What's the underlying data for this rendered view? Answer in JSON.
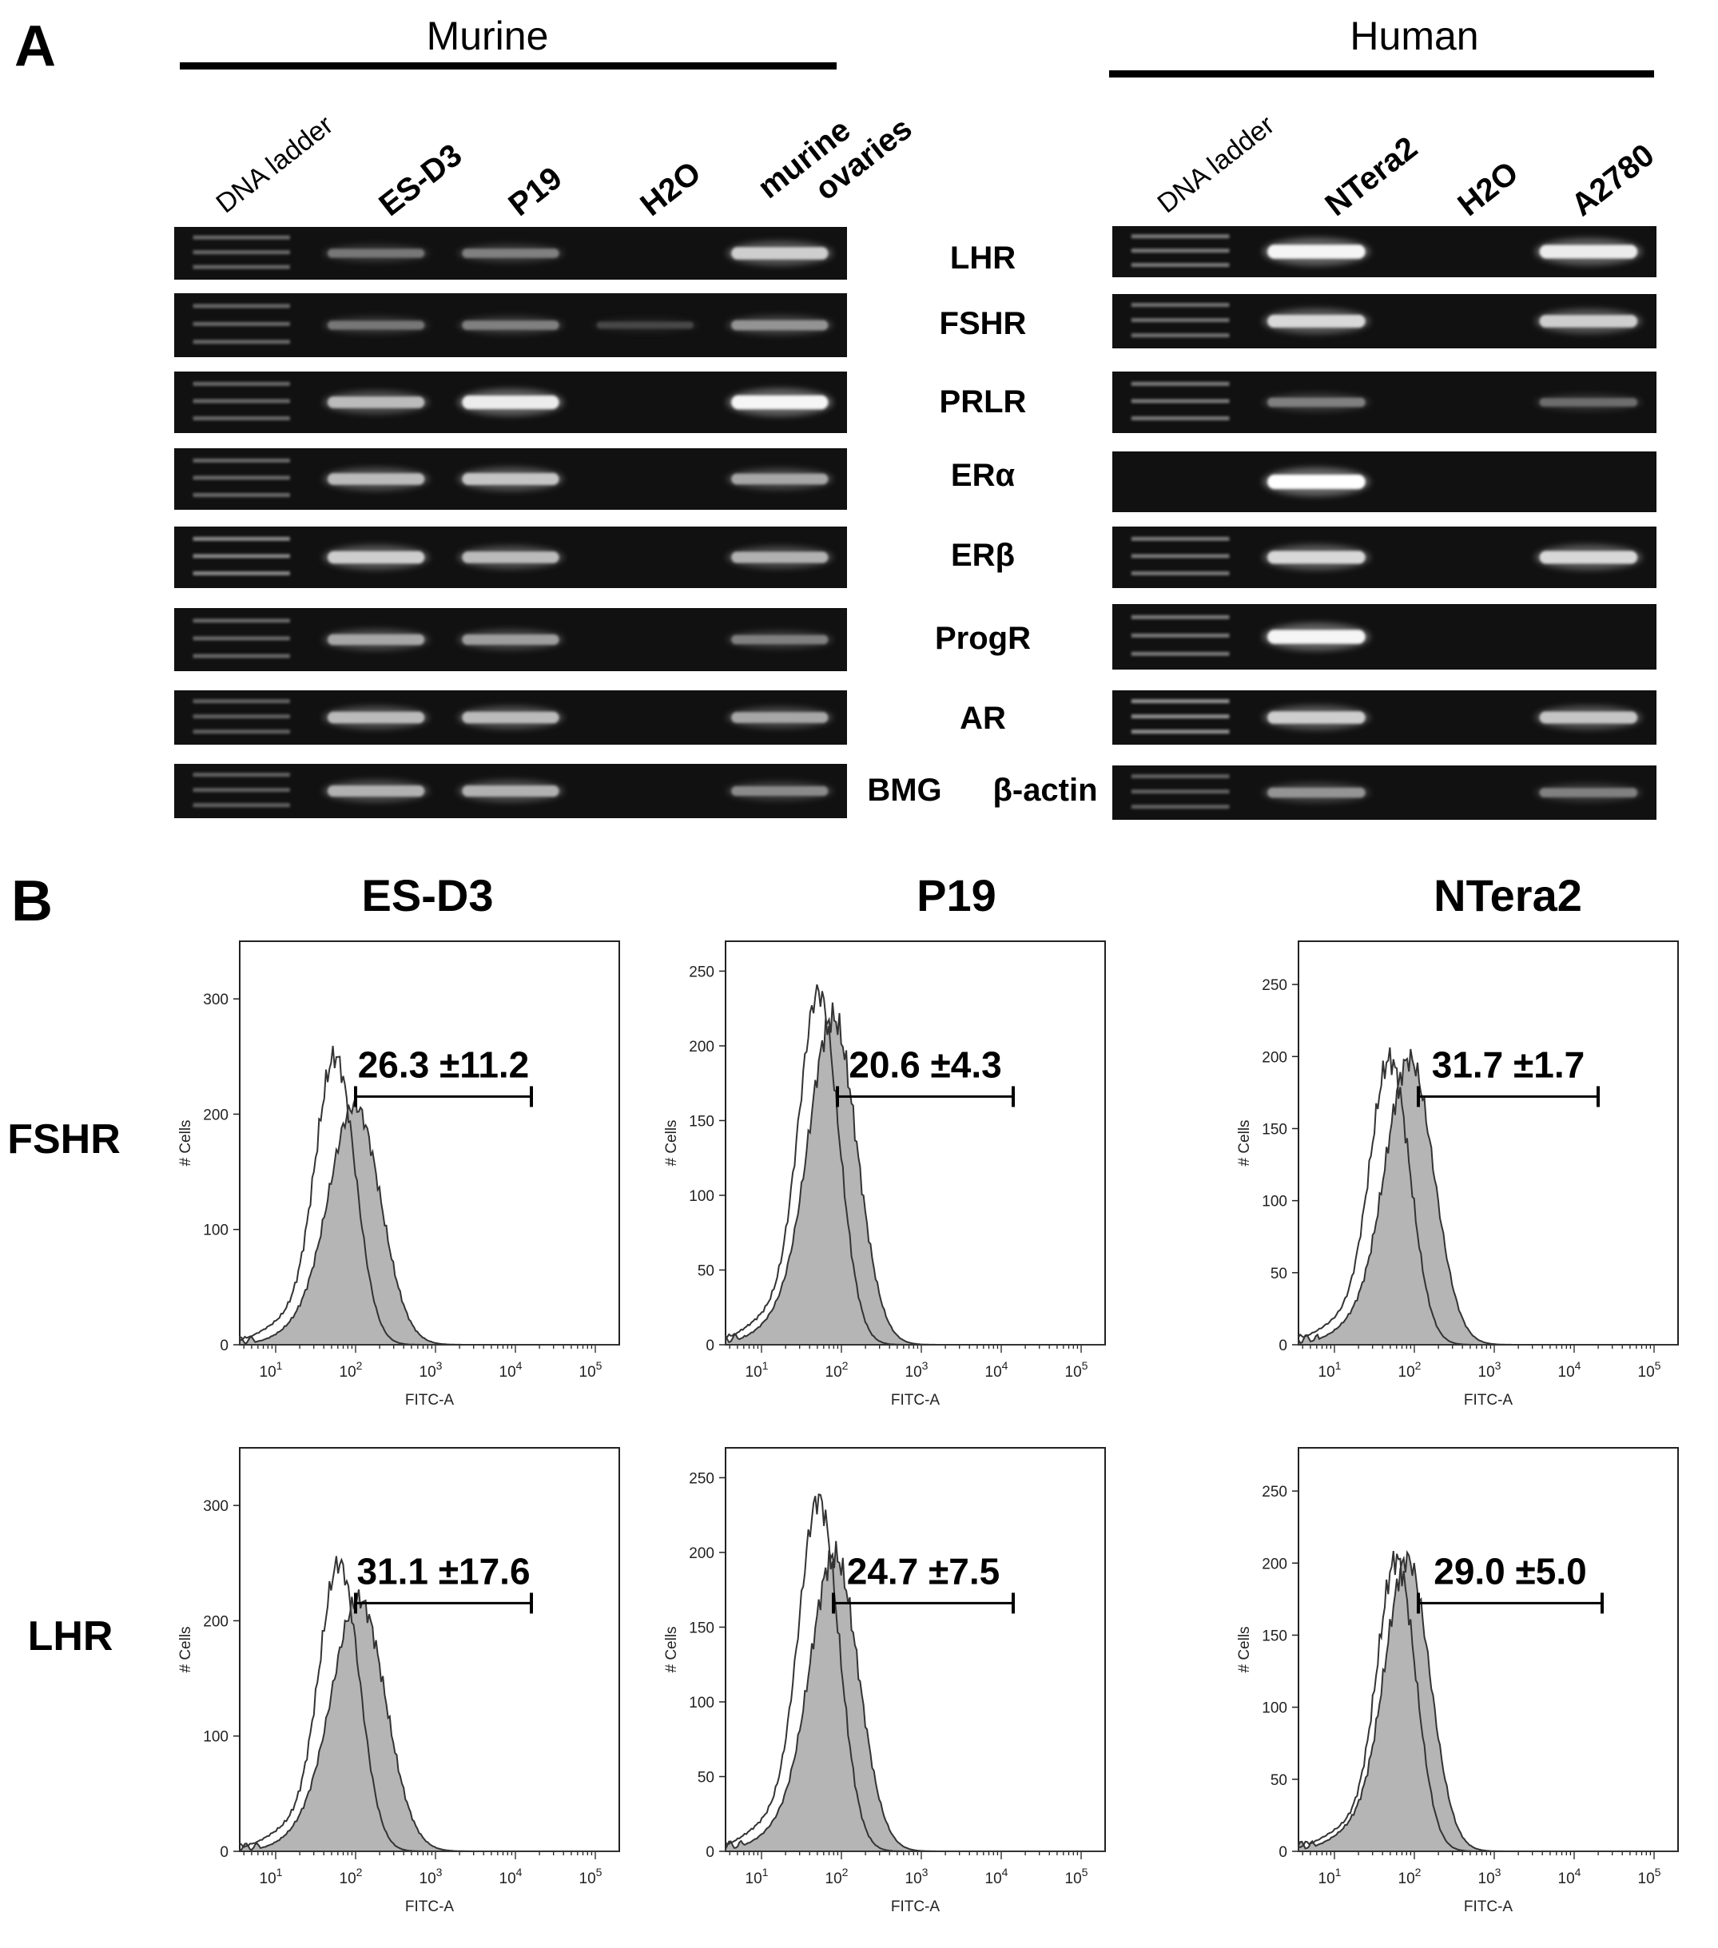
{
  "panel_a": {
    "letter": "A",
    "groups": [
      {
        "title": "Murine",
        "lanes": [
          {
            "label": "DNA ladder",
            "style": "thin"
          },
          {
            "label": "ES-D3",
            "style": "bold"
          },
          {
            "label": "P19",
            "style": "bold"
          },
          {
            "label": "H2O",
            "style": "bold"
          },
          {
            "label": "murine\novaries",
            "style": "bold"
          }
        ],
        "gels": [
          {
            "intensities": [
              0.35,
              0.3,
              0.35,
              0.0,
              0.75
            ]
          },
          {
            "intensities": [
              0.35,
              0.3,
              0.35,
              0.05,
              0.45
            ]
          },
          {
            "intensities": [
              0.35,
              0.65,
              0.9,
              0.0,
              0.95
            ]
          },
          {
            "intensities": [
              0.35,
              0.65,
              0.7,
              0.0,
              0.55
            ]
          },
          {
            "intensities": [
              0.55,
              0.75,
              0.65,
              0.0,
              0.6
            ]
          },
          {
            "intensities": [
              0.35,
              0.55,
              0.5,
              0.0,
              0.35
            ]
          },
          {
            "intensities": [
              0.3,
              0.65,
              0.65,
              0.0,
              0.55
            ]
          },
          {
            "intensities": [
              0.3,
              0.6,
              0.6,
              0.0,
              0.4
            ]
          }
        ]
      },
      {
        "title": "Human",
        "lanes": [
          {
            "label": "DNA ladder",
            "style": "thin"
          },
          {
            "label": "NTera2",
            "style": "bold"
          },
          {
            "label": "H2O",
            "style": "bold"
          },
          {
            "label": "A2780",
            "style": "bold"
          }
        ],
        "gels": [
          {
            "intensities": [
              0.45,
              0.95,
              0.0,
              0.9
            ]
          },
          {
            "intensities": [
              0.4,
              0.8,
              0.0,
              0.75
            ]
          },
          {
            "intensities": [
              0.45,
              0.35,
              0.0,
              0.25
            ]
          },
          {
            "intensities": [
              0.0,
              1.0,
              0.0,
              0.0
            ]
          },
          {
            "intensities": [
              0.45,
              0.8,
              0.0,
              0.8
            ]
          },
          {
            "intensities": [
              0.45,
              0.95,
              0.0,
              0.0
            ]
          },
          {
            "intensities": [
              0.6,
              0.75,
              0.0,
              0.7
            ]
          },
          {
            "intensities": [
              0.3,
              0.45,
              0.0,
              0.35
            ]
          }
        ]
      }
    ],
    "genes": [
      "LHR",
      "FSHR",
      "PRLR",
      "ERα",
      "ERβ",
      "ProgR",
      "AR"
    ],
    "housekeeping": {
      "murine": "BMG",
      "human": "β-actin"
    }
  },
  "panel_b": {
    "letter": "B",
    "columns": [
      "ES-D3",
      "P19",
      "NTera2"
    ],
    "rows": [
      "FSHR",
      "LHR"
    ],
    "x_axis": {
      "label": "FITC-A",
      "ticks": [
        {
          "base": "10",
          "exp": "1"
        },
        {
          "base": "10",
          "exp": "2"
        },
        {
          "base": "10",
          "exp": "3"
        },
        {
          "base": "10",
          "exp": "4"
        },
        {
          "base": "10",
          "exp": "5"
        }
      ]
    },
    "y_axis_label": "# Cells",
    "plots": [
      {
        "row": 0,
        "col": 0,
        "ymax": 350,
        "yticks": [
          "0",
          "100",
          "200",
          "300"
        ],
        "gate": "26.3 ±11.2",
        "ctrl_peak": 265,
        "ctrl_mode": 1.75,
        "ctrl_width": 0.25,
        "stain_peak": 220,
        "stain_mode": 2.0,
        "stain_width": 0.32,
        "gate_from": 2.0,
        "gate_to": 4.2
      },
      {
        "row": 0,
        "col": 1,
        "ymax": 270,
        "yticks": [
          "0",
          "50",
          "100",
          "150",
          "200",
          "250"
        ],
        "gate": "20.6 ±4.3",
        "ctrl_peak": 250,
        "ctrl_mode": 1.72,
        "ctrl_width": 0.25,
        "stain_peak": 232,
        "stain_mode": 1.9,
        "stain_width": 0.3,
        "gate_from": 1.95,
        "gate_to": 4.15
      },
      {
        "row": 0,
        "col": 2,
        "ymax": 280,
        "yticks": [
          "0",
          "50",
          "100",
          "150",
          "200",
          "250"
        ],
        "gate": "31.7 ±1.7",
        "ctrl_peak": 210,
        "ctrl_mode": 1.7,
        "ctrl_width": 0.25,
        "stain_peak": 210,
        "stain_mode": 1.95,
        "stain_width": 0.3,
        "gate_from": 2.05,
        "gate_to": 4.3
      },
      {
        "row": 1,
        "col": 0,
        "ymax": 350,
        "yticks": [
          "0",
          "100",
          "200",
          "300"
        ],
        "gate": "31.1 ±17.6",
        "ctrl_peak": 265,
        "ctrl_mode": 1.8,
        "ctrl_width": 0.25,
        "stain_peak": 232,
        "stain_mode": 2.05,
        "stain_width": 0.33,
        "gate_from": 2.0,
        "gate_to": 4.2
      },
      {
        "row": 1,
        "col": 1,
        "ymax": 270,
        "yticks": [
          "0",
          "50",
          "100",
          "150",
          "200",
          "250"
        ],
        "gate": "24.7 ±7.5",
        "ctrl_peak": 250,
        "ctrl_mode": 1.72,
        "ctrl_width": 0.25,
        "stain_peak": 210,
        "stain_mode": 1.92,
        "stain_width": 0.3,
        "gate_from": 1.9,
        "gate_to": 4.15
      },
      {
        "row": 1,
        "col": 2,
        "ymax": 280,
        "yticks": [
          "0",
          "50",
          "100",
          "150",
          "200",
          "250"
        ],
        "gate": "29.0 ±5.0",
        "ctrl_peak": 215,
        "ctrl_mode": 1.78,
        "ctrl_width": 0.24,
        "stain_peak": 215,
        "stain_mode": 1.92,
        "stain_width": 0.28,
        "gate_from": 2.05,
        "gate_to": 4.35
      }
    ]
  }
}
